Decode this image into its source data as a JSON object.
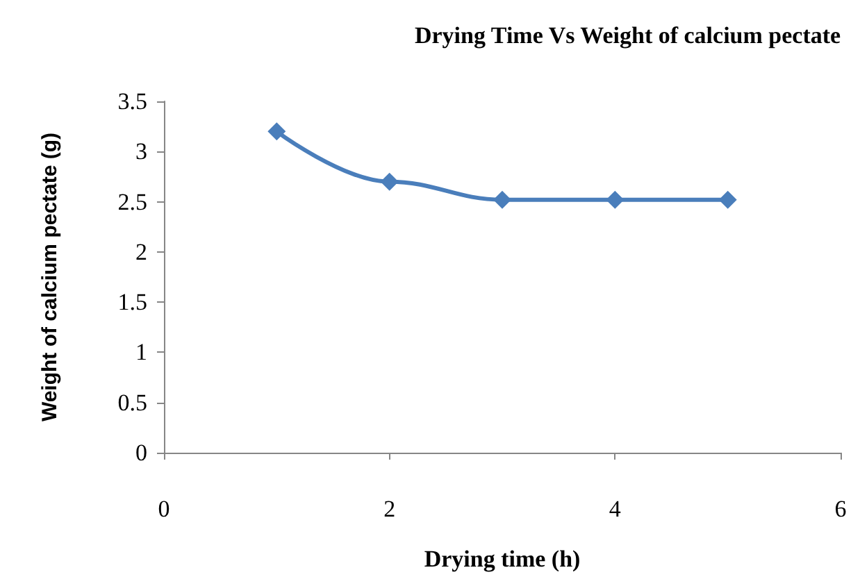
{
  "chart_data": {
    "type": "line",
    "title": "Drying Time Vs Weight of calcium pectate",
    "xlabel": "Drying time (h)",
    "ylabel": "Weight of calcium pectate (g)",
    "x": [
      1,
      2,
      3,
      4,
      5
    ],
    "series": [
      {
        "color": "#4a7ebb",
        "values": [
          3.2,
          2.7,
          2.52,
          2.52,
          2.52
        ]
      }
    ],
    "xlim": [
      0,
      6
    ],
    "xticks": [
      0,
      2,
      4,
      6
    ],
    "ylim": [
      0,
      3.5
    ],
    "yticks": [
      0,
      0.5,
      1,
      1.5,
      2,
      2.5,
      3,
      3.5
    ],
    "grid": false,
    "marker": "diamond",
    "line_style": "solid"
  }
}
